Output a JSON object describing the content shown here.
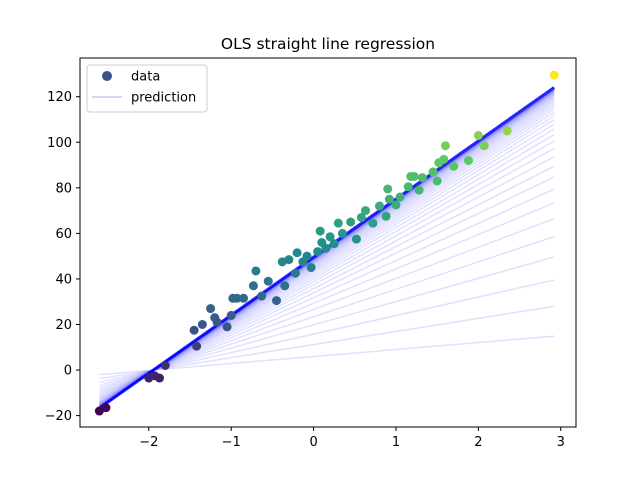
{
  "chart_data": {
    "type": "scatter",
    "title": "OLS straight line regression",
    "xlabel": "",
    "ylabel": "",
    "xlim": [
      -2.835,
      3.185
    ],
    "ylim": [
      -25,
      137
    ],
    "x_ticks": [
      -2,
      -1,
      0,
      1,
      2,
      3
    ],
    "y_ticks": [
      -20,
      0,
      20,
      40,
      60,
      80,
      100,
      120
    ],
    "grid": false,
    "legend_position": "top-left",
    "legend": [
      {
        "label": "data",
        "marker": "circle",
        "color": "#3b528b"
      },
      {
        "label": "prediction",
        "marker": "line",
        "color": "#c8c8f5"
      }
    ],
    "colormap": "viridis",
    "prediction_x_range": [
      -2.6,
      2.92
    ],
    "prediction_iterations": {
      "count": 40,
      "final_fit": {
        "slope": 25.5,
        "intercept": 49.6
      },
      "line_color": "#0000ff",
      "line_opacity": 0.12
    },
    "points": [
      {
        "x": -2.6,
        "y": -18
      },
      {
        "x": -2.52,
        "y": -16.5
      },
      {
        "x": -2.0,
        "y": -3.5
      },
      {
        "x": -1.93,
        "y": -2.5
      },
      {
        "x": -1.87,
        "y": -3.5
      },
      {
        "x": -1.8,
        "y": 2
      },
      {
        "x": -1.45,
        "y": 17.5
      },
      {
        "x": -1.42,
        "y": 10.5
      },
      {
        "x": -1.35,
        "y": 20
      },
      {
        "x": -1.25,
        "y": 27
      },
      {
        "x": -1.2,
        "y": 23
      },
      {
        "x": -1.17,
        "y": 21
      },
      {
        "x": -1.05,
        "y": 19
      },
      {
        "x": -1.0,
        "y": 24
      },
      {
        "x": -0.98,
        "y": 31.5
      },
      {
        "x": -0.93,
        "y": 31.5
      },
      {
        "x": -0.85,
        "y": 31.5
      },
      {
        "x": -0.73,
        "y": 37
      },
      {
        "x": -0.7,
        "y": 43.5
      },
      {
        "x": -0.63,
        "y": 32.5
      },
      {
        "x": -0.55,
        "y": 39
      },
      {
        "x": -0.45,
        "y": 30.5
      },
      {
        "x": -0.38,
        "y": 47.5
      },
      {
        "x": -0.35,
        "y": 37
      },
      {
        "x": -0.3,
        "y": 48.5
      },
      {
        "x": -0.22,
        "y": 42.5
      },
      {
        "x": -0.2,
        "y": 51.5
      },
      {
        "x": -0.13,
        "y": 47.5
      },
      {
        "x": -0.08,
        "y": 50
      },
      {
        "x": -0.03,
        "y": 45
      },
      {
        "x": 0.05,
        "y": 52
      },
      {
        "x": 0.08,
        "y": 61
      },
      {
        "x": 0.1,
        "y": 56
      },
      {
        "x": 0.15,
        "y": 53.5
      },
      {
        "x": 0.2,
        "y": 58.5
      },
      {
        "x": 0.25,
        "y": 55.5
      },
      {
        "x": 0.3,
        "y": 64.5
      },
      {
        "x": 0.35,
        "y": 60
      },
      {
        "x": 0.45,
        "y": 65
      },
      {
        "x": 0.52,
        "y": 57.5
      },
      {
        "x": 0.58,
        "y": 67
      },
      {
        "x": 0.63,
        "y": 70
      },
      {
        "x": 0.72,
        "y": 64.5
      },
      {
        "x": 0.8,
        "y": 72
      },
      {
        "x": 0.88,
        "y": 67.5
      },
      {
        "x": 0.9,
        "y": 79.5
      },
      {
        "x": 0.92,
        "y": 75
      },
      {
        "x": 1.0,
        "y": 72.5
      },
      {
        "x": 1.05,
        "y": 76
      },
      {
        "x": 1.15,
        "y": 80.5
      },
      {
        "x": 1.18,
        "y": 85
      },
      {
        "x": 1.22,
        "y": 85
      },
      {
        "x": 1.28,
        "y": 79
      },
      {
        "x": 1.32,
        "y": 84.5
      },
      {
        "x": 1.45,
        "y": 87
      },
      {
        "x": 1.5,
        "y": 83
      },
      {
        "x": 1.52,
        "y": 91
      },
      {
        "x": 1.58,
        "y": 92.5
      },
      {
        "x": 1.6,
        "y": 98.5
      },
      {
        "x": 1.7,
        "y": 89.5
      },
      {
        "x": 1.88,
        "y": 92
      },
      {
        "x": 2.0,
        "y": 103
      },
      {
        "x": 2.07,
        "y": 98.5
      },
      {
        "x": 2.35,
        "y": 105
      },
      {
        "x": 2.92,
        "y": 129.5
      }
    ]
  }
}
